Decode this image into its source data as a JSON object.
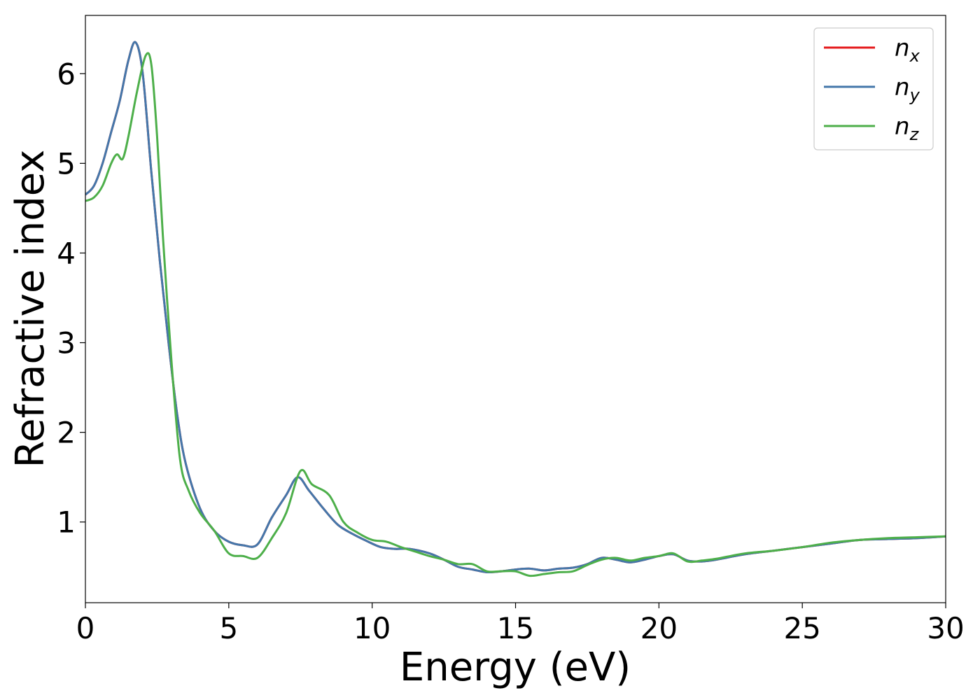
{
  "chart_data": {
    "type": "line",
    "xlabel": "Energy (eV)",
    "ylabel": "Refractive index",
    "xlim": [
      0,
      30
    ],
    "ylim": [
      0.1,
      6.65
    ],
    "xticks": [
      "0",
      "5",
      "10",
      "15",
      "20",
      "25",
      "30"
    ],
    "yticks": [
      "1",
      "2",
      "3",
      "4",
      "5",
      "6"
    ],
    "grid": false,
    "legend_position": "top-right",
    "series": [
      {
        "name": "n_x",
        "label_base": "n",
        "label_sub": "x",
        "color": "#e41a1c",
        "x": [
          0,
          0.3,
          0.6,
          0.9,
          1.2,
          1.5,
          1.75,
          2.0,
          2.3,
          2.6,
          2.9,
          3.2,
          3.5,
          4.0,
          4.5,
          5.0,
          5.5,
          6.0,
          6.5,
          7.0,
          7.4,
          7.8,
          8.3,
          8.8,
          9.3,
          9.8,
          10.3,
          10.8,
          11.3,
          12.0,
          12.5,
          13.0,
          13.5,
          14.0,
          14.5,
          15.0,
          15.5,
          16.0,
          16.5,
          17.0,
          17.5,
          18.0,
          18.5,
          19.0,
          19.5,
          20.0,
          20.5,
          21.0,
          21.5,
          22.0,
          23.0,
          24.0,
          25.0,
          26.0,
          27.0,
          28.0,
          29.0,
          30.0
        ],
        "y": [
          4.65,
          4.75,
          5.0,
          5.35,
          5.7,
          6.15,
          6.35,
          6.0,
          4.9,
          3.9,
          3.0,
          2.2,
          1.65,
          1.15,
          0.9,
          0.78,
          0.74,
          0.75,
          1.05,
          1.3,
          1.5,
          1.35,
          1.15,
          0.97,
          0.87,
          0.79,
          0.72,
          0.7,
          0.7,
          0.65,
          0.58,
          0.5,
          0.47,
          0.44,
          0.45,
          0.47,
          0.48,
          0.46,
          0.48,
          0.49,
          0.53,
          0.6,
          0.58,
          0.55,
          0.58,
          0.62,
          0.64,
          0.57,
          0.56,
          0.58,
          0.64,
          0.68,
          0.72,
          0.76,
          0.8,
          0.81,
          0.82,
          0.84
        ]
      },
      {
        "name": "n_y",
        "label_base": "n",
        "label_sub": "y",
        "color": "#4477aa",
        "x": [
          0,
          0.3,
          0.6,
          0.9,
          1.2,
          1.5,
          1.75,
          2.0,
          2.3,
          2.6,
          2.9,
          3.2,
          3.5,
          4.0,
          4.5,
          5.0,
          5.5,
          6.0,
          6.5,
          7.0,
          7.4,
          7.8,
          8.3,
          8.8,
          9.3,
          9.8,
          10.3,
          10.8,
          11.3,
          12.0,
          12.5,
          13.0,
          13.5,
          14.0,
          14.5,
          15.0,
          15.5,
          16.0,
          16.5,
          17.0,
          17.5,
          18.0,
          18.5,
          19.0,
          19.5,
          20.0,
          20.5,
          21.0,
          21.5,
          22.0,
          23.0,
          24.0,
          25.0,
          26.0,
          27.0,
          28.0,
          29.0,
          30.0
        ],
        "y": [
          4.65,
          4.75,
          5.0,
          5.35,
          5.7,
          6.15,
          6.35,
          6.0,
          4.9,
          3.9,
          3.0,
          2.2,
          1.65,
          1.15,
          0.9,
          0.78,
          0.74,
          0.75,
          1.05,
          1.3,
          1.5,
          1.35,
          1.15,
          0.97,
          0.87,
          0.79,
          0.72,
          0.7,
          0.7,
          0.65,
          0.58,
          0.5,
          0.47,
          0.44,
          0.45,
          0.47,
          0.48,
          0.46,
          0.48,
          0.49,
          0.53,
          0.6,
          0.58,
          0.55,
          0.58,
          0.62,
          0.64,
          0.57,
          0.56,
          0.58,
          0.64,
          0.68,
          0.72,
          0.76,
          0.8,
          0.81,
          0.82,
          0.84
        ]
      },
      {
        "name": "n_z",
        "label_base": "n",
        "label_sub": "z",
        "color": "#4daf4a",
        "x": [
          0,
          0.3,
          0.6,
          0.9,
          1.1,
          1.3,
          1.5,
          1.8,
          2.1,
          2.3,
          2.5,
          2.7,
          3.0,
          3.3,
          3.6,
          4.0,
          4.5,
          5.0,
          5.5,
          6.0,
          6.5,
          7.0,
          7.5,
          7.9,
          8.5,
          9.0,
          9.5,
          10.0,
          10.5,
          11.0,
          11.5,
          12.0,
          12.5,
          13.0,
          13.5,
          14.0,
          14.5,
          15.0,
          15.5,
          16.0,
          16.5,
          17.0,
          17.5,
          18.0,
          18.5,
          19.0,
          19.5,
          20.0,
          20.5,
          21.0,
          21.5,
          22.0,
          23.0,
          24.0,
          25.0,
          26.0,
          27.0,
          28.0,
          29.0,
          30.0
        ],
        "y": [
          4.58,
          4.62,
          4.75,
          5.0,
          5.1,
          5.05,
          5.3,
          5.8,
          6.2,
          6.1,
          5.3,
          4.2,
          2.8,
          1.7,
          1.35,
          1.1,
          0.9,
          0.65,
          0.62,
          0.6,
          0.82,
          1.1,
          1.57,
          1.42,
          1.3,
          1.0,
          0.88,
          0.8,
          0.78,
          0.72,
          0.67,
          0.62,
          0.58,
          0.53,
          0.53,
          0.45,
          0.45,
          0.45,
          0.4,
          0.42,
          0.44,
          0.45,
          0.52,
          0.58,
          0.6,
          0.57,
          0.6,
          0.62,
          0.65,
          0.56,
          0.57,
          0.59,
          0.65,
          0.68,
          0.72,
          0.77,
          0.8,
          0.82,
          0.83,
          0.84
        ]
      }
    ]
  }
}
